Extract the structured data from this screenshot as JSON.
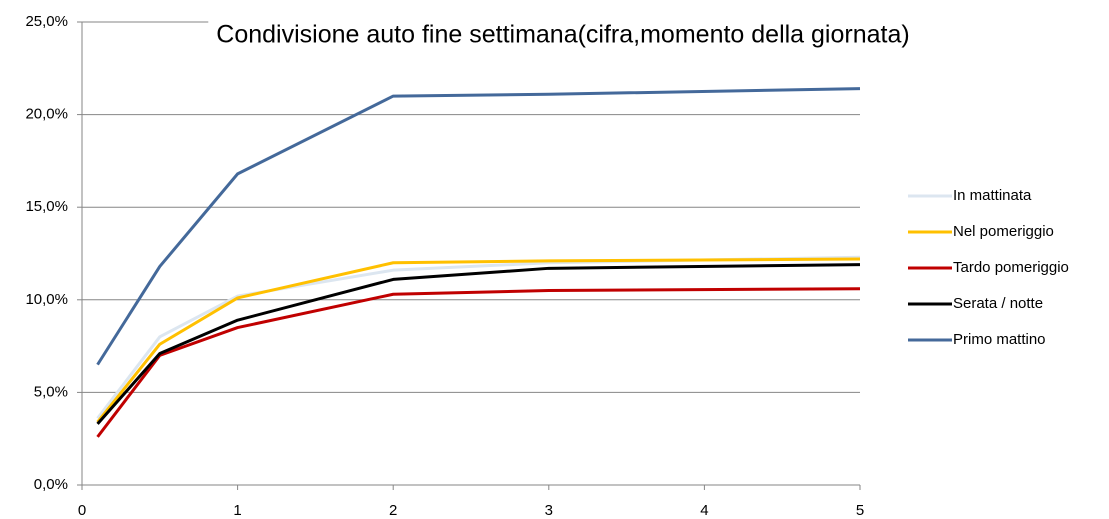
{
  "chart_data": {
    "type": "line",
    "title": "Condivisione auto fine settimana(cifra,momento della giornata)",
    "x": [
      0.1,
      0.5,
      1,
      2,
      3,
      5
    ],
    "series": [
      {
        "name": "In mattinata",
        "color": "#dce6f0",
        "values": [
          3.6,
          8.0,
          10.2,
          11.6,
          12.0,
          12.3
        ]
      },
      {
        "name": "Nel pomeriggio",
        "color": "#ffc000",
        "values": [
          3.4,
          7.6,
          10.1,
          12.0,
          12.1,
          12.2
        ]
      },
      {
        "name": "Tardo pomeriggio",
        "color": "#c00000",
        "values": [
          2.6,
          7.0,
          8.5,
          10.3,
          10.5,
          10.6
        ]
      },
      {
        "name": "Serata / notte",
        "color": "#000000",
        "values": [
          3.3,
          7.1,
          8.9,
          11.1,
          11.7,
          11.9
        ]
      },
      {
        "name": "Primo mattino",
        "color": "#44699a",
        "values": [
          6.5,
          11.8,
          16.8,
          21.0,
          21.1,
          21.4
        ]
      }
    ],
    "xlim": [
      0,
      5
    ],
    "xticks": [
      0,
      1,
      2,
      3,
      4,
      5
    ],
    "ylim": [
      0,
      25
    ],
    "yticks": [
      {
        "value": 0,
        "label": "0,0%"
      },
      {
        "value": 5,
        "label": "5,0%"
      },
      {
        "value": 10,
        "label": "10,0%"
      },
      {
        "value": 15,
        "label": "15,0%"
      },
      {
        "value": 20,
        "label": "20,0%"
      },
      {
        "value": 25,
        "label": "25,0%"
      }
    ],
    "grid": true,
    "legend": "right"
  }
}
